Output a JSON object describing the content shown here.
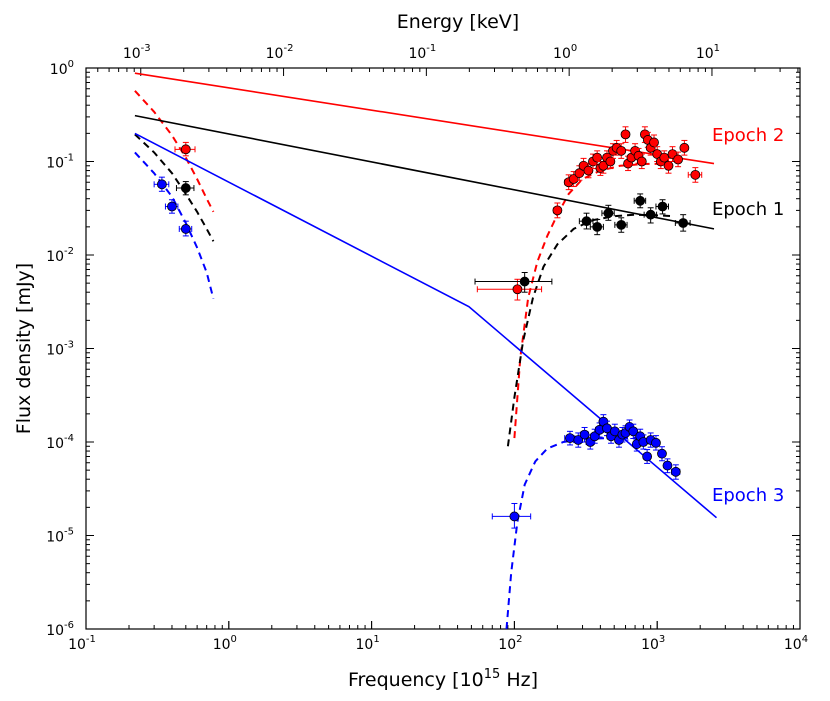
{
  "chart_data": {
    "type": "scatter",
    "xlabel_base": "Frequency [10",
    "xlabel_exp": "15",
    "xlabel_unit": " Hz]",
    "ylabel": "Flux density [mJy]",
    "top_xlabel": "Energy [keV]",
    "xscale": "log",
    "yscale": "log",
    "xlim": [
      0.1,
      10000
    ],
    "ylim": [
      1e-06,
      1
    ],
    "x_ticks": [
      {
        "value": 0.1,
        "base": "10",
        "exp": "-1"
      },
      {
        "value": 1,
        "base": "10",
        "exp": "0"
      },
      {
        "value": 10,
        "base": "10",
        "exp": "1"
      },
      {
        "value": 100,
        "base": "10",
        "exp": "2"
      },
      {
        "value": 1000,
        "base": "10",
        "exp": "3"
      },
      {
        "value": 10000,
        "base": "10",
        "exp": "4"
      }
    ],
    "y_ticks": [
      {
        "value": 1,
        "base": "10",
        "exp": "0"
      },
      {
        "value": 0.1,
        "base": "10",
        "exp": "-1"
      },
      {
        "value": 0.01,
        "base": "10",
        "exp": "-2"
      },
      {
        "value": 0.001,
        "base": "10",
        "exp": "-3"
      },
      {
        "value": 0.0001,
        "base": "10",
        "exp": "-4"
      },
      {
        "value": 1e-05,
        "base": "10",
        "exp": "-5"
      },
      {
        "value": 1e-06,
        "base": "10",
        "exp": "-6"
      }
    ],
    "top_ticks": [
      {
        "value": 0.001,
        "base": "10",
        "exp": "-3"
      },
      {
        "value": 0.01,
        "base": "10",
        "exp": "-2"
      },
      {
        "value": 0.1,
        "base": "10",
        "exp": "-1"
      },
      {
        "value": 1,
        "base": "10",
        "exp": "0"
      },
      {
        "value": 10,
        "base": "10",
        "exp": "1"
      }
    ],
    "series": [
      {
        "name": "Epoch 2",
        "color": "#ff0000",
        "powerlaw": [
          [
            0.22,
            0.88
          ],
          [
            2500,
            0.095
          ]
        ],
        "uvot_model": [
          [
            0.22,
            0.57
          ],
          [
            0.3,
            0.34
          ],
          [
            0.4,
            0.19
          ],
          [
            0.5,
            0.11
          ],
          [
            0.6,
            0.065
          ],
          [
            0.7,
            0.04
          ],
          [
            0.78,
            0.029
          ]
        ],
        "xray_model": [
          [
            100,
            0.00011
          ],
          [
            110,
            0.0008
          ],
          [
            125,
            0.0035
          ],
          [
            145,
            0.0085
          ],
          [
            170,
            0.016
          ],
          [
            200,
            0.027
          ],
          [
            240,
            0.045
          ],
          [
            300,
            0.065
          ],
          [
            400,
            0.08
          ],
          [
            550,
            0.09
          ],
          [
            800,
            0.094
          ],
          [
            1200,
            0.095
          ]
        ],
        "points": [
          {
            "x": 0.5,
            "y": 0.135,
            "dx": 0.08,
            "ylo": 0.115,
            "yhi": 0.16
          },
          {
            "x": 105,
            "y": 0.0043,
            "dx": 50,
            "ylo": 0.0033,
            "yhi": 0.0055
          },
          {
            "x": 200,
            "y": 0.03,
            "dx": 12,
            "ylo": 0.025,
            "yhi": 0.036
          },
          {
            "x": 240,
            "y": 0.06,
            "dx": 15,
            "ylo": 0.05,
            "yhi": 0.072
          },
          {
            "x": 260,
            "y": 0.065,
            "dx": 15,
            "ylo": 0.054,
            "yhi": 0.078
          },
          {
            "x": 285,
            "y": 0.075,
            "dx": 15,
            "ylo": 0.063,
            "yhi": 0.09
          },
          {
            "x": 305,
            "y": 0.09,
            "dx": 15,
            "ylo": 0.075,
            "yhi": 0.108
          },
          {
            "x": 330,
            "y": 0.08,
            "dx": 15,
            "ylo": 0.067,
            "yhi": 0.096
          },
          {
            "x": 355,
            "y": 0.1,
            "dx": 15,
            "ylo": 0.084,
            "yhi": 0.12
          },
          {
            "x": 380,
            "y": 0.11,
            "dx": 18,
            "ylo": 0.092,
            "yhi": 0.13
          },
          {
            "x": 400,
            "y": 0.085,
            "dx": 18,
            "ylo": 0.071,
            "yhi": 0.1
          },
          {
            "x": 420,
            "y": 0.09,
            "dx": 18,
            "ylo": 0.075,
            "yhi": 0.108
          },
          {
            "x": 445,
            "y": 0.11,
            "dx": 20,
            "ylo": 0.092,
            "yhi": 0.13
          },
          {
            "x": 470,
            "y": 0.1,
            "dx": 20,
            "ylo": 0.084,
            "yhi": 0.12
          },
          {
            "x": 490,
            "y": 0.13,
            "dx": 20,
            "ylo": 0.108,
            "yhi": 0.155
          },
          {
            "x": 520,
            "y": 0.14,
            "dx": 22,
            "ylo": 0.117,
            "yhi": 0.168
          },
          {
            "x": 560,
            "y": 0.13,
            "dx": 22,
            "ylo": 0.108,
            "yhi": 0.155
          },
          {
            "x": 600,
            "y": 0.195,
            "dx": 25,
            "ylo": 0.16,
            "yhi": 0.235
          },
          {
            "x": 625,
            "y": 0.095,
            "dx": 25,
            "ylo": 0.08,
            "yhi": 0.114
          },
          {
            "x": 660,
            "y": 0.11,
            "dx": 28,
            "ylo": 0.092,
            "yhi": 0.13
          },
          {
            "x": 700,
            "y": 0.13,
            "dx": 30,
            "ylo": 0.108,
            "yhi": 0.155
          },
          {
            "x": 740,
            "y": 0.115,
            "dx": 30,
            "ylo": 0.096,
            "yhi": 0.138
          },
          {
            "x": 780,
            "y": 0.1,
            "dx": 32,
            "ylo": 0.084,
            "yhi": 0.12
          },
          {
            "x": 820,
            "y": 0.195,
            "dx": 35,
            "ylo": 0.16,
            "yhi": 0.235
          },
          {
            "x": 860,
            "y": 0.17,
            "dx": 35,
            "ylo": 0.142,
            "yhi": 0.205
          },
          {
            "x": 900,
            "y": 0.14,
            "dx": 38,
            "ylo": 0.117,
            "yhi": 0.168
          },
          {
            "x": 950,
            "y": 0.16,
            "dx": 40,
            "ylo": 0.134,
            "yhi": 0.192
          },
          {
            "x": 1000,
            "y": 0.12,
            "dx": 45,
            "ylo": 0.1,
            "yhi": 0.144
          },
          {
            "x": 1060,
            "y": 0.1,
            "dx": 45,
            "ylo": 0.084,
            "yhi": 0.12
          },
          {
            "x": 1120,
            "y": 0.11,
            "dx": 50,
            "ylo": 0.092,
            "yhi": 0.13
          },
          {
            "x": 1200,
            "y": 0.09,
            "dx": 55,
            "ylo": 0.075,
            "yhi": 0.108
          },
          {
            "x": 1280,
            "y": 0.12,
            "dx": 55,
            "ylo": 0.1,
            "yhi": 0.144
          },
          {
            "x": 1400,
            "y": 0.105,
            "dx": 60,
            "ylo": 0.088,
            "yhi": 0.126
          },
          {
            "x": 1550,
            "y": 0.14,
            "dx": 80,
            "ylo": 0.117,
            "yhi": 0.168
          },
          {
            "x": 1850,
            "y": 0.072,
            "dx": 200,
            "ylo": 0.06,
            "yhi": 0.086
          }
        ]
      },
      {
        "name": "Epoch 1",
        "color": "#000000",
        "powerlaw": [
          [
            0.22,
            0.31
          ],
          [
            2500,
            0.019
          ]
        ],
        "uvot_model": [
          [
            0.22,
            0.195
          ],
          [
            0.3,
            0.125
          ],
          [
            0.4,
            0.075
          ],
          [
            0.5,
            0.045
          ],
          [
            0.6,
            0.029
          ],
          [
            0.7,
            0.019
          ],
          [
            0.78,
            0.014
          ]
        ],
        "xray_model": [
          [
            90,
            9e-05
          ],
          [
            100,
            0.0003
          ],
          [
            115,
            0.0012
          ],
          [
            135,
            0.0035
          ],
          [
            160,
            0.0075
          ],
          [
            200,
            0.013
          ],
          [
            260,
            0.019
          ],
          [
            350,
            0.0235
          ],
          [
            500,
            0.026
          ],
          [
            700,
            0.027
          ],
          [
            1000,
            0.0265
          ],
          [
            1300,
            0.026
          ]
        ],
        "points": [
          {
            "x": 0.5,
            "y": 0.052,
            "dx": 0.07,
            "ylo": 0.044,
            "yhi": 0.061
          },
          {
            "x": 118,
            "y": 0.0052,
            "dx": 65,
            "ylo": 0.004,
            "yhi": 0.0065
          },
          {
            "x": 320,
            "y": 0.023,
            "dx": 35,
            "ylo": 0.019,
            "yhi": 0.028
          },
          {
            "x": 380,
            "y": 0.02,
            "dx": 40,
            "ylo": 0.0165,
            "yhi": 0.024
          },
          {
            "x": 455,
            "y": 0.028,
            "dx": 45,
            "ylo": 0.0235,
            "yhi": 0.034
          },
          {
            "x": 560,
            "y": 0.021,
            "dx": 55,
            "ylo": 0.0175,
            "yhi": 0.025
          },
          {
            "x": 760,
            "y": 0.038,
            "dx": 70,
            "ylo": 0.032,
            "yhi": 0.045
          },
          {
            "x": 900,
            "y": 0.027,
            "dx": 90,
            "ylo": 0.022,
            "yhi": 0.032
          },
          {
            "x": 1090,
            "y": 0.033,
            "dx": 110,
            "ylo": 0.0275,
            "yhi": 0.039
          },
          {
            "x": 1520,
            "y": 0.022,
            "dx": 180,
            "ylo": 0.018,
            "yhi": 0.027
          }
        ]
      },
      {
        "name": "Epoch 3",
        "color": "#0000ff",
        "powerlaw": [
          [
            0.22,
            0.2
          ],
          [
            48,
            0.0028
          ],
          [
            2600,
            1.55e-05
          ]
        ],
        "uvot_model": [
          [
            0.22,
            0.125
          ],
          [
            0.3,
            0.075
          ],
          [
            0.4,
            0.042
          ],
          [
            0.5,
            0.022
          ],
          [
            0.6,
            0.012
          ],
          [
            0.7,
            0.0065
          ],
          [
            0.78,
            0.0034
          ]
        ],
        "xray_model": [
          [
            88,
            1e-06
          ],
          [
            95,
            4e-06
          ],
          [
            105,
            1.4e-05
          ],
          [
            118,
            3.5e-05
          ],
          [
            140,
            6.2e-05
          ],
          [
            170,
            8.5e-05
          ],
          [
            220,
            0.0001
          ],
          [
            300,
            0.000108
          ],
          [
            450,
            0.00011
          ],
          [
            650,
            0.00011
          ],
          [
            900,
            0.000105
          ]
        ],
        "points": [
          {
            "x": 0.34,
            "y": 0.057,
            "dx": 0.04,
            "ylo": 0.048,
            "yhi": 0.068
          },
          {
            "x": 0.4,
            "y": 0.033,
            "dx": 0.04,
            "ylo": 0.028,
            "yhi": 0.039
          },
          {
            "x": 0.5,
            "y": 0.019,
            "dx": 0.05,
            "ylo": 0.016,
            "yhi": 0.023
          },
          {
            "x": 100,
            "y": 1.6e-05,
            "dx": 30,
            "ylo": 1.2e-05,
            "yhi": 2.2e-05
          },
          {
            "x": 245,
            "y": 0.00011,
            "dx": 20,
            "ylo": 9.3e-05,
            "yhi": 0.00013
          },
          {
            "x": 280,
            "y": 0.000105,
            "dx": 20,
            "ylo": 8.8e-05,
            "yhi": 0.000125
          },
          {
            "x": 310,
            "y": 0.00012,
            "dx": 20,
            "ylo": 0.0001,
            "yhi": 0.000143
          },
          {
            "x": 340,
            "y": 0.0001,
            "dx": 22,
            "ylo": 8.4e-05,
            "yhi": 0.000119
          },
          {
            "x": 365,
            "y": 0.000115,
            "dx": 22,
            "ylo": 9.7e-05,
            "yhi": 0.000137
          },
          {
            "x": 395,
            "y": 0.000135,
            "dx": 25,
            "ylo": 0.000113,
            "yhi": 0.00016
          },
          {
            "x": 420,
            "y": 0.000165,
            "dx": 25,
            "ylo": 0.000138,
            "yhi": 0.000196
          },
          {
            "x": 445,
            "y": 0.00014,
            "dx": 25,
            "ylo": 0.000117,
            "yhi": 0.000167
          },
          {
            "x": 475,
            "y": 0.000115,
            "dx": 28,
            "ylo": 9.7e-05,
            "yhi": 0.000137
          },
          {
            "x": 505,
            "y": 0.00013,
            "dx": 28,
            "ylo": 0.000109,
            "yhi": 0.000155
          },
          {
            "x": 540,
            "y": 0.000105,
            "dx": 30,
            "ylo": 8.8e-05,
            "yhi": 0.000125
          },
          {
            "x": 570,
            "y": 0.00012,
            "dx": 30,
            "ylo": 0.0001,
            "yhi": 0.000143
          },
          {
            "x": 600,
            "y": 0.000125,
            "dx": 30,
            "ylo": 0.000105,
            "yhi": 0.000149
          },
          {
            "x": 640,
            "y": 0.000145,
            "dx": 32,
            "ylo": 0.000122,
            "yhi": 0.000172
          },
          {
            "x": 680,
            "y": 0.00013,
            "dx": 32,
            "ylo": 0.000109,
            "yhi": 0.000155
          },
          {
            "x": 720,
            "y": 9.5e-05,
            "dx": 35,
            "ylo": 8e-05,
            "yhi": 0.000113
          },
          {
            "x": 760,
            "y": 0.000115,
            "dx": 35,
            "ylo": 9.7e-05,
            "yhi": 0.000137
          },
          {
            "x": 800,
            "y": 0.0001,
            "dx": 38,
            "ylo": 8.4e-05,
            "yhi": 0.000119
          },
          {
            "x": 850,
            "y": 7e-05,
            "dx": 40,
            "ylo": 5.9e-05,
            "yhi": 8.3e-05
          },
          {
            "x": 900,
            "y": 0.000105,
            "dx": 45,
            "ylo": 8.8e-05,
            "yhi": 0.000125
          },
          {
            "x": 980,
            "y": 9.8e-05,
            "dx": 50,
            "ylo": 8.2e-05,
            "yhi": 0.000117
          },
          {
            "x": 1080,
            "y": 7.5e-05,
            "dx": 55,
            "ylo": 6.3e-05,
            "yhi": 8.9e-05
          },
          {
            "x": 1180,
            "y": 5.6e-05,
            "dx": 65,
            "ylo": 4.7e-05,
            "yhi": 6.6e-05
          },
          {
            "x": 1350,
            "y": 4.8e-05,
            "dx": 90,
            "ylo": 4e-05,
            "yhi": 5.7e-05
          }
        ]
      }
    ]
  }
}
